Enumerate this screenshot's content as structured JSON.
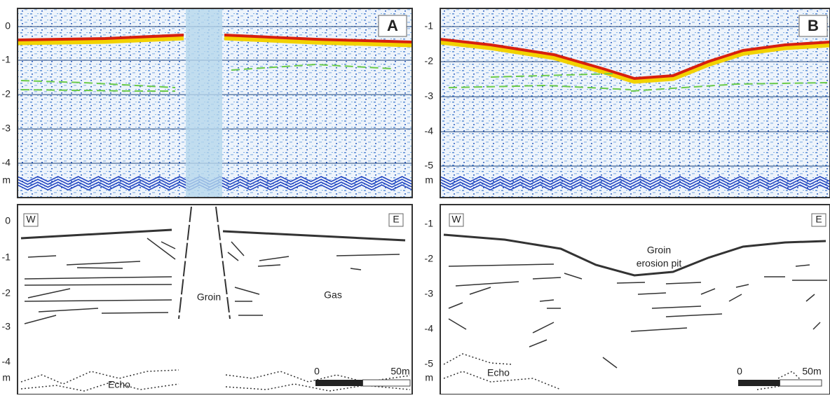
{
  "panels": [
    {
      "label": "A",
      "depth_ticks": [
        "0",
        "-1",
        "-2",
        "-3",
        "-4"
      ],
      "unit": "m"
    },
    {
      "label": "B",
      "depth_ticks": [
        "-1",
        "-2",
        "-3",
        "-4",
        "-5"
      ],
      "unit": "m"
    },
    {
      "west": "W",
      "east": "E",
      "depth_ticks": [
        "0",
        "-1",
        "-2",
        "-3",
        "-4"
      ],
      "unit": "m",
      "annotations": [
        "Groin",
        "Gas",
        "Echo"
      ],
      "scale": [
        "0",
        "50m"
      ]
    },
    {
      "west": "W",
      "east": "E",
      "depth_ticks": [
        "-1",
        "-2",
        "-3",
        "-4",
        "-5"
      ],
      "unit": "m",
      "annotations": [
        "Groin",
        "erosion pit",
        "Echo"
      ],
      "scale": [
        "0",
        "50m"
      ]
    }
  ]
}
